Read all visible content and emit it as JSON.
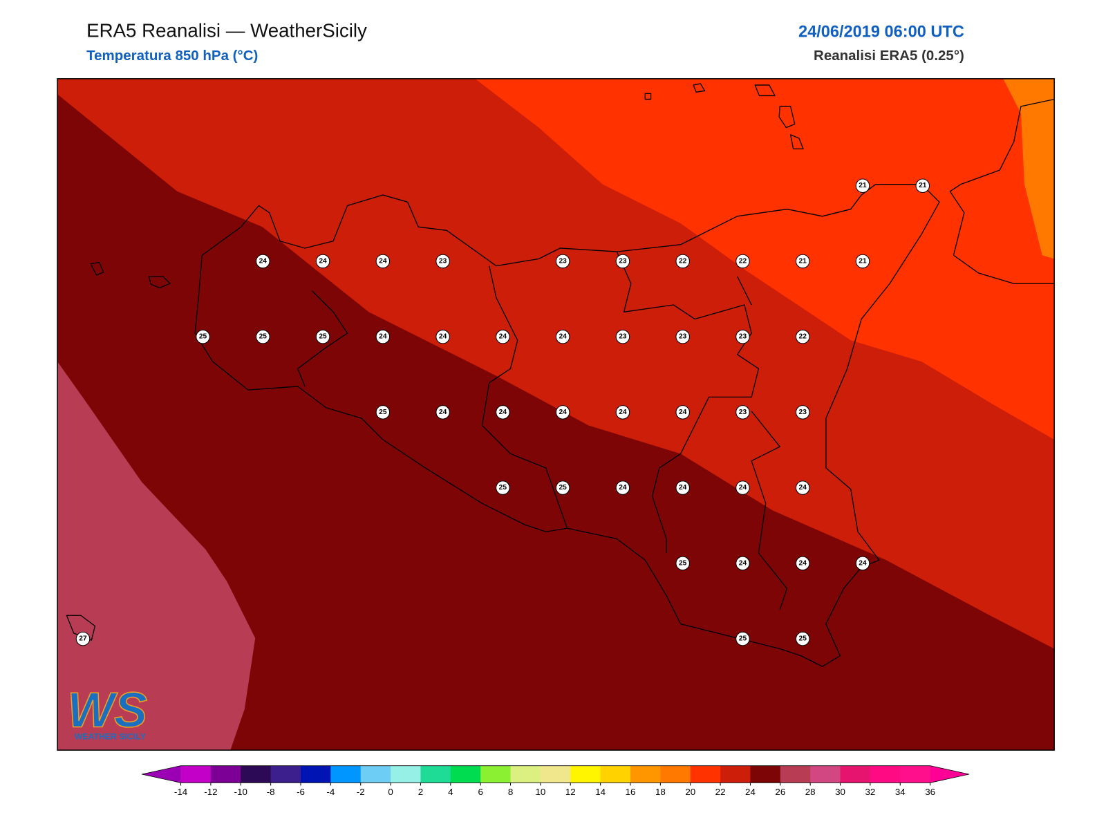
{
  "header": {
    "title": "ERA5 Reanalisi — WeatherSicily",
    "subtitle": "Temperatura 850 hPa (°C)",
    "datetime": "24/06/2019 06:00 UTC",
    "source": "Reanalisi ERA5 (0.25°)"
  },
  "logo": {
    "mark": "WS",
    "name": "WEATHER SICILY"
  },
  "grid": [
    [
      null,
      null,
      null,
      null,
      null,
      null,
      null,
      null,
      null,
      null,
      null,
      null,
      null,
      21,
      21
    ],
    [
      null,
      null,
      null,
      24,
      24,
      24,
      23,
      null,
      23,
      23,
      22,
      22,
      21,
      21,
      null
    ],
    [
      null,
      null,
      25,
      25,
      25,
      24,
      24,
      24,
      24,
      23,
      23,
      23,
      22,
      null,
      null
    ],
    [
      null,
      null,
      null,
      null,
      null,
      25,
      24,
      24,
      24,
      24,
      24,
      23,
      23,
      null,
      null
    ],
    [
      null,
      null,
      null,
      null,
      null,
      null,
      null,
      25,
      25,
      24,
      24,
      24,
      24,
      null,
      null
    ],
    [
      null,
      null,
      null,
      null,
      null,
      null,
      null,
      null,
      null,
      null,
      25,
      24,
      24,
      24,
      null
    ],
    [
      27,
      null,
      null,
      null,
      null,
      null,
      null,
      null,
      null,
      null,
      null,
      25,
      25,
      null,
      null
    ]
  ],
  "colorbar": {
    "ticks": [
      -14,
      -12,
      -10,
      -8,
      -6,
      -4,
      -2,
      0,
      2,
      4,
      6,
      8,
      10,
      12,
      14,
      16,
      18,
      20,
      22,
      24,
      26,
      28,
      30,
      32,
      34,
      36
    ],
    "colors": [
      "#c200c8",
      "#7c0096",
      "#2d0a55",
      "#3c1e8c",
      "#0014b4",
      "#0096ff",
      "#6ecdf5",
      "#96f0e6",
      "#1edc96",
      "#00dc50",
      "#8cf032",
      "#dcf082",
      "#f0e68c",
      "#fff500",
      "#ffd200",
      "#ff9600",
      "#ff7800",
      "#ff3200",
      "#cd1e0a",
      "#7d0505",
      "#b93c55",
      "#d24682",
      "#e6146e",
      "#ff0a82",
      "#ff0f8c"
    ],
    "under": "#9b00b4",
    "over": "#ff0096"
  }
}
